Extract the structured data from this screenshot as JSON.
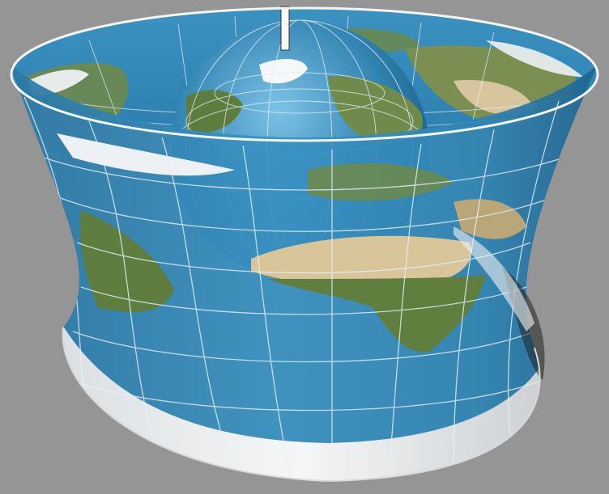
{
  "image": {
    "subject": "globe-inside-hyperboloid-map-projection",
    "colors": {
      "background": "#959595",
      "ocean": "#2f82b0",
      "ocean_dark": "#1d5f8a",
      "ocean_light": "#5aa8d4",
      "land_green": "#6f8a4a",
      "land_dark": "#4c6a33",
      "desert": "#d9c59a",
      "ice": "#f1f3f5",
      "grid": "#e6f0f6",
      "rim": "#f4f4f4"
    }
  }
}
